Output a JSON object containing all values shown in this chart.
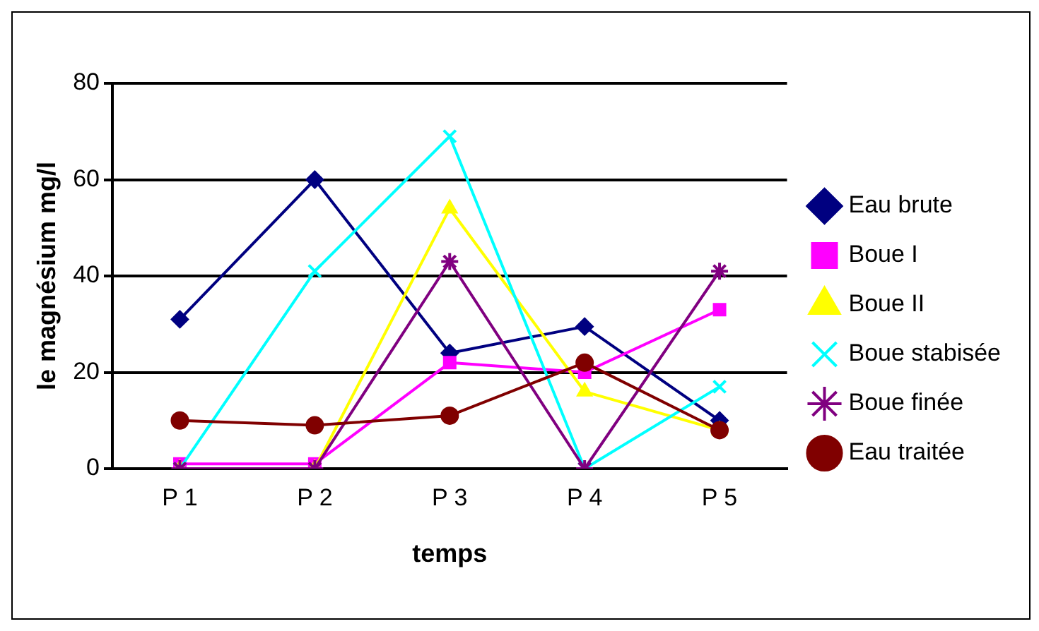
{
  "chart_data": {
    "type": "line",
    "xlabel": "temps",
    "ylabel": "le magnésium mg/l",
    "categories": [
      "P 1",
      "P 2",
      "P 3",
      "P 4",
      "P 5"
    ],
    "ylim": [
      0,
      80
    ],
    "yticks": [
      0,
      20,
      40,
      60,
      80
    ],
    "grid": "y",
    "legend": "right",
    "series": [
      {
        "name": "Eau brute",
        "color": "#000080",
        "marker": "diamond",
        "values": [
          31,
          60,
          24,
          29.5,
          10
        ]
      },
      {
        "name": "Boue I",
        "color": "#ff00ff",
        "marker": "square",
        "values": [
          1,
          1,
          22,
          20,
          33
        ]
      },
      {
        "name": "Boue II",
        "color": "#ffff00",
        "marker": "triangle",
        "values": [
          0,
          0,
          54,
          16,
          8
        ]
      },
      {
        "name": "Boue stabisée",
        "color": "#00ffff",
        "marker": "cross",
        "values": [
          0,
          41,
          69,
          0,
          17
        ]
      },
      {
        "name": "Boue finée",
        "color": "#800080",
        "marker": "cross",
        "values": [
          0,
          0,
          43,
          0,
          41
        ]
      },
      {
        "name": "Eau traitée",
        "color": "#800000",
        "marker": "circle",
        "values": [
          10,
          9,
          11,
          22,
          8
        ]
      }
    ]
  }
}
